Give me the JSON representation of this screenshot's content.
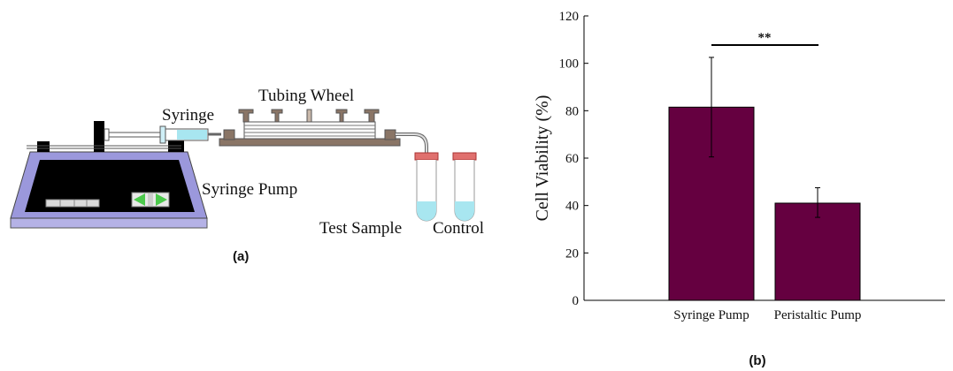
{
  "panel_a": {
    "caption": "(a)",
    "labels": {
      "syringe": "Syringe",
      "tubing_wheel": "Tubing Wheel",
      "syringe_pump": "Syringe Pump",
      "test_sample": "Test Sample",
      "control": "Control"
    },
    "colors": {
      "pump_body": "#9b98dc",
      "pump_base": "#b5b2e6",
      "pump_face": "#000000",
      "wheel": "#8a7566",
      "tube_cap": "#e0706e",
      "liquid": "#a8e6f0",
      "arrow": "#4cc94c"
    }
  },
  "panel_b": {
    "caption": "(b)",
    "significance": "**",
    "chart_data": {
      "type": "bar",
      "categories": [
        "Syringe Pump",
        "Peristaltic Pump"
      ],
      "values": [
        81.5,
        41
      ],
      "error_low": [
        60.5,
        35
      ],
      "error_high": [
        102.5,
        47.5
      ],
      "ylabel": "Cell Viability (%)",
      "xlabel": "",
      "ylim": [
        0,
        120
      ],
      "yticks": [
        0,
        20,
        40,
        60,
        80,
        100,
        120
      ],
      "bar_color": "#650040",
      "grid": false
    }
  }
}
